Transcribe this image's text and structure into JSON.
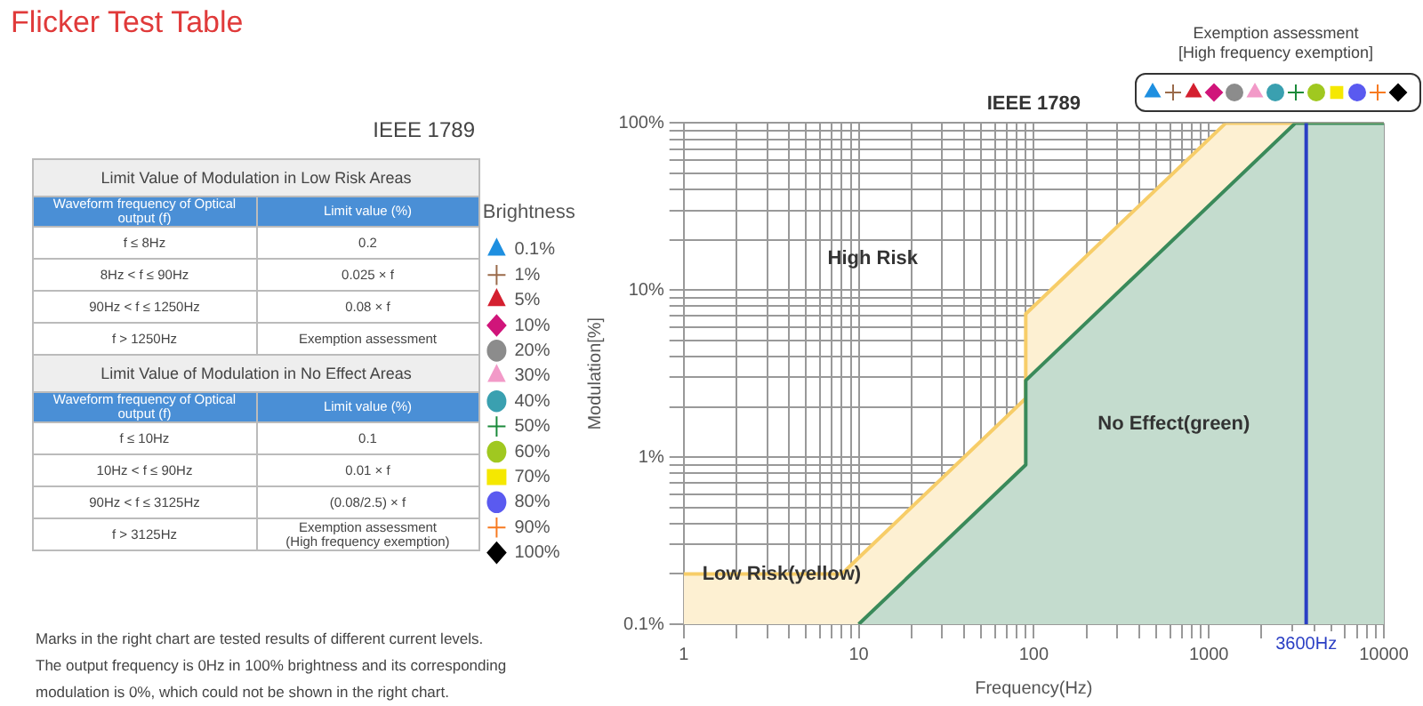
{
  "chart_data": [
    {
      "type": "other",
      "title": "Flicker Test Table",
      "subtitle": "IEEE 1789",
      "annotations": [
        "Limit Value of Modulation in Low Risk Areas",
        "Waveform frequency of Optical output (f)",
        "Limit value (%)",
        "f ≤ 8Hz",
        "0.2",
        "8Hz < f ≤ 90Hz",
        "0.025 × f",
        "90Hz < f ≤ 1250Hz",
        "0.08 × f",
        "f > 1250Hz",
        "Exemption assessment",
        "Limit Value of Modulation in No Effect Areas",
        "Waveform frequency of Optical output (f)",
        "Limit value (%)",
        "f ≤ 10Hz",
        "0.1",
        "10Hz < f ≤ 90Hz",
        "0.01 × f",
        "90Hz < f ≤ 3125Hz",
        "(0.08/2.5) × f",
        "f > 3125Hz",
        "Exemption assessment\n(High frequency exemption)",
        "Marks in the right chart are tested results of different current levels.\nThe output frequency is 0Hz in 100% brightness and its corresponding\nmodulation is 0%, which could not be shown in the right chart."
      ]
    },
    {
      "type": "area",
      "title": "IEEE 1789",
      "xlabel": "Frequency(Hz)",
      "ylabel": "Modulation[%]",
      "legend_title": "Brightness",
      "legend": "left",
      "grid": true,
      "log": "xy",
      "xlim": [
        1,
        10000
      ],
      "ylim": [
        0.1,
        100
      ],
      "xticks": [
        1,
        {
          "value": 2,
          "label": null
        },
        {
          "value": 3,
          "label": null
        },
        {
          "value": 4,
          "label": null
        },
        {
          "value": 5,
          "label": null
        },
        {
          "value": 6,
          "label": null
        },
        {
          "value": 7,
          "label": null
        },
        {
          "value": 8,
          "label": null
        },
        {
          "value": 9,
          "label": null
        },
        10,
        {
          "value": 20,
          "label": null
        },
        {
          "value": 30,
          "label": null
        },
        {
          "value": 40,
          "label": null
        },
        {
          "value": 50,
          "label": null
        },
        {
          "value": 60,
          "label": null
        },
        {
          "value": 70,
          "label": null
        },
        {
          "value": 80,
          "label": null
        },
        {
          "value": 90,
          "label": null
        },
        100,
        {
          "value": 200,
          "label": null
        },
        {
          "value": 300,
          "label": null
        },
        {
          "value": 400,
          "label": null
        },
        {
          "value": 500,
          "label": null
        },
        {
          "value": 600,
          "label": null
        },
        {
          "value": 700,
          "label": null
        },
        {
          "value": 800,
          "label": null
        },
        {
          "value": 900,
          "label": null
        },
        1000,
        {
          "value": 2000,
          "label": null
        },
        {
          "value": 3000,
          "label": null
        },
        {
          "value": 4000,
          "label": null
        },
        {
          "value": 5000,
          "label": null
        },
        {
          "value": 6000,
          "label": null
        },
        {
          "value": 7000,
          "label": null
        },
        {
          "value": 8000,
          "label": null
        },
        {
          "value": 9000,
          "label": null
        },
        10000
      ],
      "yticks": [
        {
          "value": 0.1,
          "label": "0.1%"
        },
        {
          "value": 0.2,
          "label": null
        },
        {
          "value": 0.3,
          "label": null
        },
        {
          "value": 0.4,
          "label": null
        },
        {
          "value": 0.5,
          "label": null
        },
        {
          "value": 0.6,
          "label": null
        },
        {
          "value": 0.7,
          "label": null
        },
        {
          "value": 0.8,
          "label": null
        },
        {
          "value": 0.9,
          "label": null
        },
        {
          "value": 1,
          "label": "1%"
        },
        {
          "value": 2,
          "label": null
        },
        {
          "value": 3,
          "label": null
        },
        {
          "value": 4,
          "label": null
        },
        {
          "value": 5,
          "label": null
        },
        {
          "value": 6,
          "label": null
        },
        {
          "value": 7,
          "label": null
        },
        {
          "value": 8,
          "label": null
        },
        {
          "value": 9,
          "label": null
        },
        {
          "value": 10,
          "label": "10%"
        },
        {
          "value": 20,
          "label": null
        },
        {
          "value": 30,
          "label": null
        },
        {
          "value": 40,
          "label": null
        },
        {
          "value": 50,
          "label": null
        },
        {
          "value": 60,
          "label": null
        },
        {
          "value": 70,
          "label": null
        },
        {
          "value": 80,
          "label": null
        },
        {
          "value": 90,
          "label": null
        },
        {
          "value": 100,
          "label": "100%"
        }
      ],
      "ref_lines": [
        {
          "axis": "x",
          "value": 3600,
          "label": "3600Hz",
          "color": "#2a3ec4"
        }
      ],
      "annotations": [
        "High Risk",
        "Low Risk(yellow)",
        "No Effect(green)",
        "Exemption assessment\n[High frequency exemption]"
      ],
      "series": [
        {
          "type": "area",
          "color": "#f7cd68",
          "x": [
            1,
            8,
            90,
            90,
            1250,
            10000
          ],
          "values": [
            0.2,
            0.2,
            2.25,
            7.2,
            100,
            100
          ]
        },
        {
          "type": "area",
          "color": "#3a8a5a",
          "x": [
            10,
            90,
            90,
            3125,
            10000
          ],
          "values": [
            0.1,
            0.9,
            2.88,
            100,
            100
          ]
        },
        {
          "name": "0.1%",
          "type": "scatter",
          "marker": "triangle",
          "color": "#1e8fe0",
          "values": [
            null
          ]
        },
        {
          "name": "1%",
          "type": "scatter",
          "marker": "cross",
          "color": "#9a6a4a",
          "values": [
            null
          ]
        },
        {
          "name": "5%",
          "type": "scatter",
          "marker": "triangle",
          "color": "#d42030",
          "values": [
            null
          ]
        },
        {
          "name": "10%",
          "type": "scatter",
          "marker": "diamond",
          "color": "#d0157a",
          "values": [
            null
          ]
        },
        {
          "name": "20%",
          "type": "scatter",
          "marker": "circle",
          "color": "#8c8c8c",
          "values": [
            null
          ]
        },
        {
          "name": "30%",
          "type": "scatter",
          "marker": "triangle",
          "color": "#f29ac8",
          "values": [
            null
          ]
        },
        {
          "name": "40%",
          "type": "scatter",
          "marker": "circle",
          "color": "#3aa0b0",
          "values": [
            null
          ]
        },
        {
          "name": "50%",
          "type": "scatter",
          "marker": "cross",
          "color": "#1a8a3a",
          "values": [
            null
          ]
        },
        {
          "name": "60%",
          "type": "scatter",
          "marker": "circle",
          "color": "#a0c820",
          "values": [
            null
          ]
        },
        {
          "name": "70%",
          "type": "scatter",
          "marker": "square",
          "color": "#f5e800",
          "values": [
            null
          ]
        },
        {
          "name": "80%",
          "type": "scatter",
          "marker": "circle",
          "color": "#5a5af0",
          "values": [
            null
          ]
        },
        {
          "name": "90%",
          "type": "scatter",
          "marker": "cross",
          "color": "#f77a20",
          "values": [
            null
          ]
        },
        {
          "name": "100%",
          "type": "scatter",
          "marker": "diamond",
          "color": "#000000",
          "values": [
            null
          ]
        }
      ]
    }
  ]
}
